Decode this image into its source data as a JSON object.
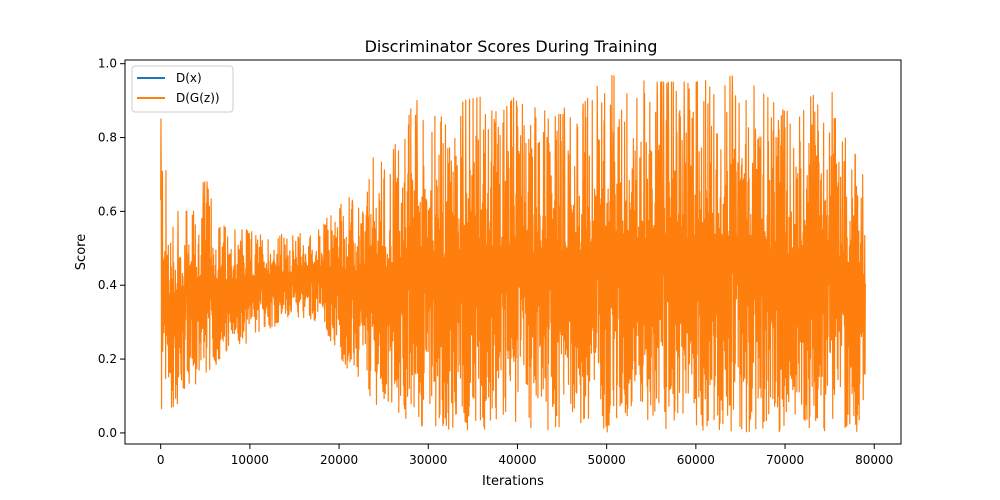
{
  "chart_data": {
    "type": "line",
    "title": "Discriminator Scores During Training",
    "xlabel": "Iterations",
    "ylabel": "Score",
    "xlim": [
      -4000,
      83000
    ],
    "ylim": [
      -0.03,
      1.01
    ],
    "x_ticks": [
      0,
      10000,
      20000,
      30000,
      40000,
      50000,
      60000,
      70000,
      80000
    ],
    "x_tick_labels": [
      "0",
      "10000",
      "20000",
      "30000",
      "40000",
      "50000",
      "60000",
      "70000",
      "80000"
    ],
    "y_ticks": [
      0.0,
      0.2,
      0.4,
      0.6,
      0.8,
      1.0
    ],
    "y_tick_labels": [
      "0.0",
      "0.2",
      "0.4",
      "0.6",
      "0.8",
      "1.0"
    ],
    "grid": false,
    "legend_position": "top-left",
    "x_end": 79000,
    "series": [
      {
        "name": "D(x)",
        "color": "#1f77b4",
        "x": [],
        "y": []
      },
      {
        "name": "D(G(z))",
        "color": "#ff7f0e",
        "envelope": {
          "x": [
            0,
            200,
            1000,
            2000,
            3000,
            4000,
            5000,
            6000,
            8000,
            10000,
            12000,
            14000,
            16000,
            18000,
            20000,
            22000,
            24000,
            26000,
            28000,
            30000,
            32000,
            34000,
            36000,
            38000,
            40000,
            42000,
            44000,
            46000,
            50000,
            55000,
            60000,
            65000,
            70000,
            75000,
            79000
          ],
          "upper": [
            0.85,
            0.85,
            0.6,
            0.6,
            0.6,
            0.6,
            0.7,
            0.6,
            0.55,
            0.55,
            0.55,
            0.54,
            0.54,
            0.56,
            0.66,
            0.62,
            0.76,
            0.76,
            0.9,
            0.9,
            0.84,
            0.9,
            0.91,
            0.86,
            0.92,
            0.88,
            0.93,
            0.85,
            0.97,
            0.95,
            0.95,
            0.97,
            0.87,
            0.94,
            0.68
          ],
          "lower": [
            0.0,
            0.0,
            0.06,
            0.08,
            0.1,
            0.13,
            0.15,
            0.18,
            0.21,
            0.25,
            0.28,
            0.3,
            0.31,
            0.3,
            0.2,
            0.14,
            0.08,
            0.04,
            0.02,
            0.01,
            0.01,
            0.01,
            0.005,
            0.005,
            0.002,
            0.002,
            0.002,
            0.002,
            0.002,
            0.002,
            0.002,
            0.002,
            0.002,
            0.002,
            0.002
          ]
        }
      }
    ]
  }
}
